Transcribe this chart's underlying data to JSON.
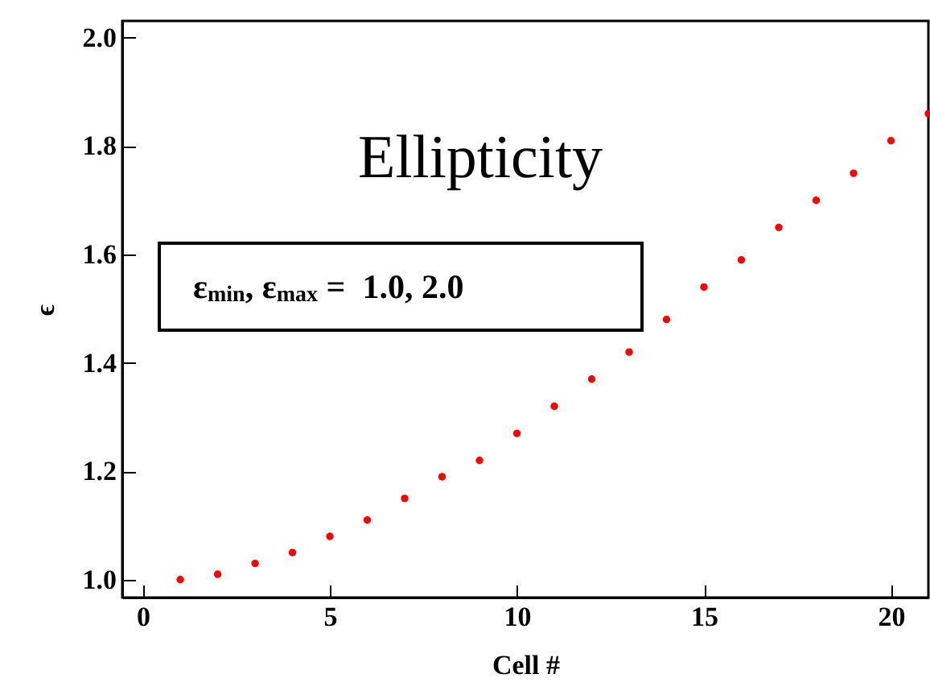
{
  "chart_data": {
    "type": "scatter",
    "title": "Ellipticity",
    "xlabel": "Cell #",
    "ylabel": "ϵ",
    "annotations": [
      "ε$_{min}$, ε$_{max}$ =  1.0, 2.0"
    ],
    "x": [
      1,
      2,
      3,
      4,
      5,
      6,
      7,
      8,
      9,
      10,
      11,
      12,
      13,
      14,
      15,
      16,
      17,
      18,
      19,
      20,
      21
    ],
    "series": [
      {
        "color": "#ff0000",
        "values": [
          1.0,
          1.01,
          1.03,
          1.05,
          1.08,
          1.11,
          1.15,
          1.19,
          1.22,
          1.27,
          1.32,
          1.37,
          1.42,
          1.48,
          1.54,
          1.59,
          1.65,
          1.7,
          1.75,
          1.81,
          1.86
        ]
      }
    ],
    "xlim": [
      -0.55,
      21
    ],
    "ylim": [
      0.967,
      2.031
    ],
    "xticks": [
      0,
      5,
      10,
      15,
      20
    ],
    "yticks": [
      {
        "value": 1,
        "label": "1.0"
      },
      {
        "value": 1.2,
        "label": "1.2"
      },
      {
        "value": 1.4,
        "label": "1.4"
      },
      {
        "value": 1.6,
        "label": "1.6"
      },
      {
        "value": 1.8,
        "label": "1.8"
      },
      {
        "value": 2,
        "label": "2.0"
      }
    ],
    "marker": "circle",
    "grid": false
  }
}
